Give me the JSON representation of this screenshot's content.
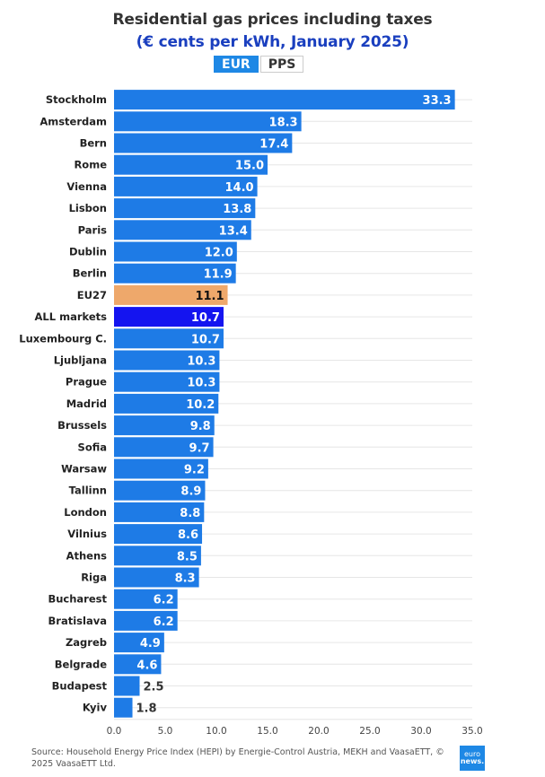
{
  "header": {
    "title": "Residential gas prices including taxes",
    "subtitle": "(€ cents per kWh, January 2025)",
    "toggle": {
      "active": "EUR",
      "inactive": "PPS"
    }
  },
  "footer": {
    "source": "Source: Household Energy Price Index (HEPI) by Energie-Control Austria, MEKH and VaasaETT, © 2025 VaasaETT Ltd.",
    "logo_line1": "euro",
    "logo_line2": "news."
  },
  "colors": {
    "bar": "#1e7be6",
    "eu27": "#eea86b",
    "all_markets": "#1414f0",
    "grid": "#e6e6e6"
  },
  "chart_data": {
    "type": "bar",
    "orientation": "horizontal",
    "title": "Residential gas prices including taxes",
    "subtitle": "(€ cents per kWh, January 2025)",
    "xlabel": "",
    "ylabel": "",
    "xlim": [
      0,
      35
    ],
    "xticks": [
      "0.0",
      "5.0",
      "10.0",
      "15.0",
      "20.0",
      "25.0",
      "30.0",
      "35.0"
    ],
    "xtick_values": [
      0,
      5,
      10,
      15,
      20,
      25,
      30,
      35
    ],
    "grid": true,
    "categories": [
      "Stockholm",
      "Amsterdam",
      "Bern",
      "Rome",
      "Vienna",
      "Lisbon",
      "Paris",
      "Dublin",
      "Berlin",
      "EU27",
      "ALL markets",
      "Luxembourg C.",
      "Ljubljana",
      "Prague",
      "Madrid",
      "Brussels",
      "Sofia",
      "Warsaw",
      "Tallinn",
      "London",
      "Vilnius",
      "Athens",
      "Riga",
      "Bucharest",
      "Bratislava",
      "Zagreb",
      "Belgrade",
      "Budapest",
      "Kyiv"
    ],
    "values": [
      33.3,
      18.3,
      17.4,
      15.0,
      14.0,
      13.8,
      13.4,
      12.0,
      11.9,
      11.1,
      10.7,
      10.7,
      10.3,
      10.3,
      10.2,
      9.8,
      9.7,
      9.2,
      8.9,
      8.8,
      8.6,
      8.5,
      8.3,
      6.2,
      6.2,
      4.9,
      4.6,
      2.5,
      1.8
    ],
    "labels": [
      "33.3",
      "18.3",
      "17.4",
      "15.0",
      "14.0",
      "13.8",
      "13.4",
      "12.0",
      "11.9",
      "11.1",
      "10.7",
      "10.7",
      "10.3",
      "10.3",
      "10.2",
      "9.8",
      "9.7",
      "9.2",
      "8.9",
      "8.8",
      "8.6",
      "8.5",
      "8.3",
      "6.2",
      "6.2",
      "4.9",
      "4.6",
      "2.5",
      "1.8"
    ],
    "highlight": {
      "EU27": "eu27",
      "ALL markets": "all_markets"
    }
  }
}
